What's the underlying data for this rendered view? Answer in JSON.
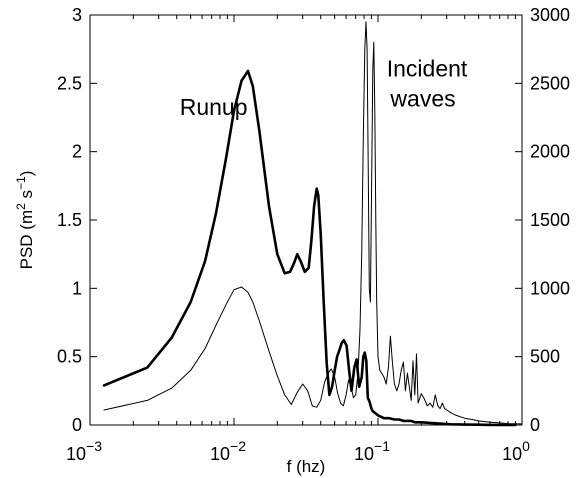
{
  "chart_data": {
    "type": "line",
    "title": "",
    "xlabel": "f (hz)",
    "ylabel_left": {
      "base": "PSD (m",
      "sup1": "2",
      "mid": " s",
      "sup2": "−1",
      "end": ")"
    },
    "ylabel_right": "",
    "x_scale": "log",
    "xlim": [
      0.001,
      1
    ],
    "ylim_left": [
      0,
      3
    ],
    "ylim_right": [
      0,
      3000
    ],
    "grid": false,
    "x_ticks": [
      {
        "value": 0.001,
        "base": "10",
        "exp": "−3"
      },
      {
        "value": 0.01,
        "base": "10",
        "exp": "−2"
      },
      {
        "value": 0.1,
        "base": "10",
        "exp": "−1"
      },
      {
        "value": 1,
        "base": "10",
        "exp": "0"
      }
    ],
    "y_ticks_left": [
      "0",
      "0.5",
      "1",
      "1.5",
      "2",
      "2.5",
      "3"
    ],
    "y_ticks_right": [
      "0",
      "500",
      "1000",
      "1500",
      "2000",
      "2500",
      "3000"
    ],
    "annotations": [
      {
        "text": "Runup",
        "x": 0.0042,
        "y": 2.27,
        "axis": "left"
      },
      {
        "text": "Incident",
        "x": 0.115,
        "y": 2.55,
        "axis": "left"
      },
      {
        "text": "waves",
        "x": 0.122,
        "y": 2.33,
        "axis": "left"
      }
    ],
    "series": [
      {
        "axis": "left",
        "style": "thick",
        "x": [
          0.00125,
          0.0025,
          0.0037,
          0.005,
          0.0063,
          0.0075,
          0.0088,
          0.01,
          0.0113,
          0.0125,
          0.0135,
          0.015,
          0.0175,
          0.02,
          0.0225,
          0.0245,
          0.026,
          0.0275,
          0.029,
          0.031,
          0.033,
          0.0345,
          0.036,
          0.0375,
          0.0385,
          0.04,
          0.042,
          0.044,
          0.046,
          0.048,
          0.05,
          0.052,
          0.054,
          0.056,
          0.058,
          0.0605,
          0.063,
          0.0655,
          0.0685,
          0.071,
          0.074,
          0.077,
          0.079,
          0.081,
          0.083,
          0.085,
          0.0875,
          0.09,
          0.092,
          0.095,
          0.1,
          0.105,
          0.11,
          0.12,
          0.13,
          0.14,
          0.15,
          0.16,
          0.17,
          0.18,
          0.2,
          0.23,
          0.27,
          0.32,
          0.4,
          0.5,
          0.6,
          0.75,
          0.9
        ],
        "y": [
          0.29,
          0.42,
          0.64,
          0.9,
          1.2,
          1.55,
          1.95,
          2.3,
          2.52,
          2.59,
          2.48,
          2.15,
          1.6,
          1.25,
          1.11,
          1.12,
          1.18,
          1.25,
          1.2,
          1.12,
          1.15,
          1.35,
          1.6,
          1.73,
          1.68,
          1.4,
          0.9,
          0.45,
          0.22,
          0.28,
          0.4,
          0.5,
          0.55,
          0.6,
          0.62,
          0.58,
          0.4,
          0.25,
          0.42,
          0.48,
          0.28,
          0.35,
          0.5,
          0.53,
          0.47,
          0.2,
          0.17,
          0.12,
          0.1,
          0.09,
          0.07,
          0.06,
          0.05,
          0.05,
          0.04,
          0.04,
          0.03,
          0.03,
          0.03,
          0.02,
          0.02,
          0.015,
          0.01,
          0.005,
          0.003,
          0.002,
          0.001,
          0.001,
          0.001
        ]
      },
      {
        "axis": "right",
        "style": "thin",
        "x": [
          0.00125,
          0.0025,
          0.0037,
          0.005,
          0.0063,
          0.0075,
          0.0088,
          0.01,
          0.0113,
          0.0125,
          0.0135,
          0.015,
          0.0175,
          0.02,
          0.0225,
          0.025,
          0.0275,
          0.03,
          0.0325,
          0.035,
          0.0375,
          0.04,
          0.0425,
          0.045,
          0.0475,
          0.05,
          0.0525,
          0.055,
          0.0575,
          0.06,
          0.0625,
          0.065,
          0.0675,
          0.07,
          0.0725,
          0.075,
          0.077,
          0.079,
          0.081,
          0.0825,
          0.084,
          0.0855,
          0.087,
          0.0885,
          0.09,
          0.092,
          0.0935,
          0.095,
          0.0965,
          0.098,
          0.1,
          0.103,
          0.106,
          0.11,
          0.114,
          0.118,
          0.122,
          0.126,
          0.13,
          0.135,
          0.14,
          0.145,
          0.15,
          0.155,
          0.16,
          0.165,
          0.17,
          0.175,
          0.18,
          0.185,
          0.19,
          0.2,
          0.21,
          0.22,
          0.23,
          0.24,
          0.25,
          0.26,
          0.27,
          0.28,
          0.29,
          0.3,
          0.32,
          0.35,
          0.4,
          0.45,
          0.5,
          0.6,
          0.7,
          0.8,
          1.0
        ],
        "y": [
          110,
          180,
          270,
          400,
          560,
          730,
          880,
          990,
          1010,
          970,
          900,
          760,
          540,
          360,
          220,
          150,
          240,
          300,
          250,
          140,
          130,
          180,
          310,
          380,
          410,
          350,
          230,
          160,
          140,
          220,
          330,
          280,
          200,
          220,
          370,
          700,
          1250,
          2100,
          2750,
          2950,
          2750,
          1900,
          1000,
          900,
          1600,
          2600,
          2800,
          2300,
          1500,
          900,
          500,
          400,
          380,
          350,
          300,
          420,
          650,
          450,
          300,
          250,
          300,
          400,
          460,
          250,
          380,
          280,
          180,
          470,
          220,
          520,
          160,
          230,
          190,
          140,
          160,
          130,
          220,
          140,
          120,
          160,
          120,
          110,
          90,
          70,
          50,
          40,
          30,
          20,
          15,
          10,
          8
        ]
      }
    ]
  }
}
